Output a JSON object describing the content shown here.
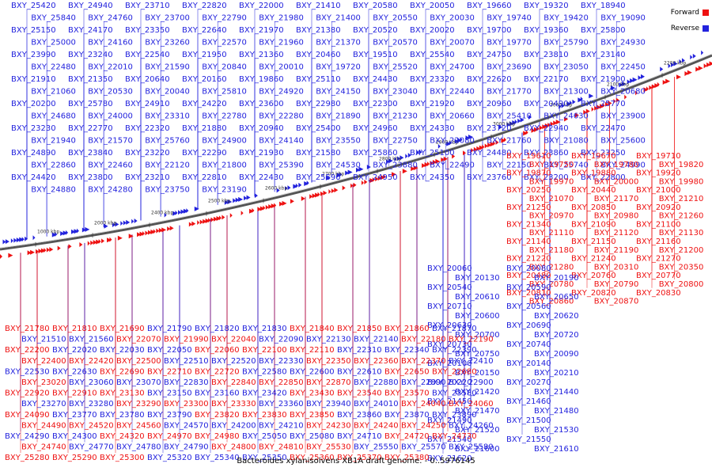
{
  "caption": "Bacteroides xylanisolvens XB1A draft genome. - 0..5976145",
  "legend": [
    {
      "label": "Forward",
      "color": "#ee1111"
    },
    {
      "label": "Reverse",
      "color": "#2222dd"
    }
  ],
  "colors": {
    "forward": "#ee1111",
    "reverse": "#2222dd",
    "backbone": "#444444"
  },
  "ticks": [
    "1000 kbp",
    "2000 kbp",
    "2400 kbp",
    "2500 kbp",
    "2600 kbp",
    "2700 kbp",
    "2800 kbp",
    "2900 kbp",
    "3000 kbp",
    "3000 kbp",
    "2100 kbp",
    "2200 kbp"
  ],
  "labels": {
    "top_blue": [
      "BXY_25420",
      "BXY_24940",
      "BXY_23710",
      "BXY_22820",
      "BXY_22000",
      "BXY_21410",
      "BXY_20580",
      "BXY_20050",
      "BXY_19660",
      "BXY_19320",
      "BXY_18940",
      "BXY_25840",
      "BXY_24760",
      "BXY_23700",
      "BXY_22790",
      "BXY_21980",
      "BXY_21400",
      "BXY_20550",
      "BXY_20030",
      "BXY_19740",
      "BXY_19420",
      "BXY_19090",
      "BXY_25150",
      "BXY_24170",
      "BXY_23350",
      "BXY_22640",
      "BXY_21970",
      "BXY_21380",
      "BXY_20520",
      "BXY_20020",
      "BXY_19700",
      "BXY_19360",
      "BXY_25800",
      "BXY_25000",
      "BXY_24160",
      "BXY_23260",
      "BXY_22570",
      "BXY_21960",
      "BXY_21370",
      "BXY_20570",
      "BXY_20070",
      "BXY_19770",
      "BXY_25790",
      "BXY_24930",
      "BXY_23990",
      "BXY_23240",
      "BXY_22540",
      "BXY_21950",
      "BXY_21360",
      "BXY_20460",
      "BXY_19510",
      "BXY_25540",
      "BXY_24750",
      "BXY_23810",
      "BXY_23140",
      "BXY_22480",
      "BXY_22010",
      "BXY_21590",
      "BXY_20840",
      "BXY_20010",
      "BXY_19720",
      "BXY_25520",
      "BXY_24700",
      "BXY_23690",
      "BXY_23050",
      "BXY_22450",
      "BXY_21910",
      "BXY_21350",
      "BXY_20640",
      "BXY_20160",
      "BXY_19860",
      "BXY_25110",
      "BXY_24430",
      "BXY_23320",
      "BXY_22620",
      "BXY_22170",
      "BXY_21900",
      "BXY_21060",
      "BXY_20530",
      "BXY_20040",
      "BXY_25810",
      "BXY_24920",
      "BXY_24150",
      "BXY_23040",
      "BXY_22440",
      "BXY_21770",
      "BXY_21300",
      "BXY_20680",
      "BXY_20200",
      "BXY_25780",
      "BXY_24910",
      "BXY_24220",
      "BXY_23600",
      "BXY_22980",
      "BXY_22300",
      "BXY_21920",
      "BXY_20960",
      "BXY_20490",
      "BXY_25770",
      "BXY_24680",
      "BXY_24000",
      "BXY_23310",
      "BXY_22780",
      "BXY_22280",
      "BXY_21890",
      "BXY_21230",
      "BXY_20660",
      "BXY_25410",
      "BXY_24630",
      "BXY_23900",
      "BXY_23230",
      "BXY_22770",
      "BXY_22320",
      "BXY_21880",
      "BXY_20940",
      "BXY_25400",
      "BXY_24960",
      "BXY_24330",
      "BXY_23720",
      "BXY_22940",
      "BXY_22470",
      "BXY_21940",
      "BXY_21570",
      "BXY_25760",
      "BXY_24900",
      "BXY_24140",
      "BXY_23550",
      "BXY_22750",
      "BXY_22080",
      "BXY_21760",
      "BXY_21080",
      "BXY_25600",
      "BXY_24890",
      "BXY_23840",
      "BXY_23220",
      "BXY_22290",
      "BXY_21930",
      "BXY_21580",
      "BXY_25860",
      "BXY_25100",
      "BXY_24480",
      "BXY_23860",
      "BXY_23250",
      "BXY_22860",
      "BXY_22460",
      "BXY_22120",
      "BXY_21800",
      "BXY_25390",
      "BXY_24530",
      "BXY_23880",
      "BXY_22490",
      "BXY_22150",
      "BXY_25740",
      "BXY_24990",
      "BXY_24420",
      "BXY_23800",
      "BXY_23210",
      "BXY_22810",
      "BXY_22430",
      "BXY_25590",
      "BXY_24950",
      "BXY_24350",
      "BXY_23760",
      "BXY_23200",
      "BXY_22800",
      "BXY_24880",
      "BXY_24280",
      "BXY_23750",
      "BXY_23190"
    ],
    "right_red": [
      "BXY_19610",
      "BXY_19670",
      "BXY_19710",
      "BXY_19750",
      "BXY_19780",
      "BXY_19820",
      "BXY_19870",
      "BXY_19880",
      "BXY_19920",
      "BXY_19970",
      "BXY_20000",
      "BXY_19980",
      "BXY_20250",
      "BXY_20440",
      "BXY_21000",
      "BXY_21070",
      "BXY_21170",
      "BXY_21210",
      "BXY_21250",
      "BXY_20850",
      "BXY_20920",
      "BXY_20970",
      "BXY_20980",
      "BXY_21260",
      "BXY_21340",
      "BXY_21090",
      "BXY_21100",
      "BXY_21110",
      "BXY_21120",
      "BXY_21130",
      "BXY_21140",
      "BXY_21150",
      "BXY_21160",
      "BXY_21180",
      "BXY_21190",
      "BXY_21200",
      "BXY_21220",
      "BXY_21240",
      "BXY_21270",
      "BXY_21280",
      "BXY_20310",
      "BXY_20350",
      "BXY_20480",
      "BXY_20760",
      "BXY_20770",
      "BXY_20780",
      "BXY_20790",
      "BXY_20800",
      "BXY_20810",
      "BXY_20820",
      "BXY_20830",
      "BXY_20860",
      "BXY_20870"
    ],
    "right_blue": [
      "BXY_20060",
      "BXY_20080",
      "BXY_20130",
      "BXY_20190",
      "BXY_20540",
      "BXY_20590",
      "BXY_20610",
      "BXY_20650",
      "BXY_20710",
      "BXY_20560",
      "BXY_20600",
      "BXY_20620",
      "BXY_20630",
      "BXY_20690",
      "BXY_20700",
      "BXY_20720",
      "BXY_20730",
      "BXY_20740",
      "BXY_20750",
      "BXY_20090",
      "BXY_20100",
      "BXY_20140",
      "BXY_20150",
      "BXY_20210",
      "BXY_20220",
      "BXY_20270",
      "BXY_21420",
      "BXY_21440",
      "BXY_21450",
      "BXY_21460",
      "BXY_21470",
      "BXY_21480",
      "BXY_21490",
      "BXY_21500",
      "BXY_21520",
      "BXY_21530",
      "BXY_21540",
      "BXY_21550",
      "BXY_21600",
      "BXY_21610",
      "BXY_21620"
    ],
    "bottom_mixed": [
      "BXY_21780",
      "BXY_21810",
      "BXY_21690",
      "BXY_21790",
      "BXY_21820",
      "BXY_21830",
      "BXY_21840",
      "BXY_21850",
      "BXY_21860",
      "BXY_21870",
      "BXY_21510",
      "BXY_21560",
      "BXY_22070",
      "BXY_21990",
      "BXY_22040",
      "BXY_22090",
      "BXY_22130",
      "BXY_22140",
      "BXY_22180",
      "BXY_22190",
      "BXY_22200",
      "BXY_22020",
      "BXY_22030",
      "BXY_22050",
      "BXY_22060",
      "BXY_22100",
      "BXY_22110",
      "BXY_22310",
      "BXY_22340",
      "BXY_22390",
      "BXY_22400",
      "BXY_22420",
      "BXY_22500",
      "BXY_22510",
      "BXY_22520",
      "BXY_22330",
      "BXY_22350",
      "BXY_22360",
      "BXY_22370",
      "BXY_22410",
      "BXY_22530",
      "BXY_22630",
      "BXY_22690",
      "BXY_22710",
      "BXY_22720",
      "BXY_22580",
      "BXY_22600",
      "BXY_22610",
      "BXY_22650",
      "BXY_22680",
      "BXY_23020",
      "BXY_23060",
      "BXY_23070",
      "BXY_22830",
      "BXY_22840",
      "BXY_22850",
      "BXY_22870",
      "BXY_22880",
      "BXY_22890",
      "BXY_22900",
      "BXY_22920",
      "BXY_22910",
      "BXY_23130",
      "BXY_23150",
      "BXY_23160",
      "BXY_23420",
      "BXY_23430",
      "BXY_23540",
      "BXY_23570",
      "BXY_23580",
      "BXY_23270",
      "BXY_23280",
      "BXY_23290",
      "BXY_23300",
      "BXY_23330",
      "BXY_23360",
      "BXY_23940",
      "BXY_24010",
      "BXY_24040",
      "BXY_24060",
      "BXY_24090",
      "BXY_23770",
      "BXY_23780",
      "BXY_23790",
      "BXY_23820",
      "BXY_23830",
      "BXY_23850",
      "BXY_23860",
      "BXY_23870",
      "BXY_23890",
      "BXY_24490",
      "BXY_24520",
      "BXY_24560",
      "BXY_24570",
      "BXY_24200",
      "BXY_24210",
      "BXY_24230",
      "BXY_24240",
      "BXY_24250",
      "BXY_24260",
      "BXY_24290",
      "BXY_24300",
      "BXY_24320",
      "BXY_24970",
      "BXY_24980",
      "BXY_25050",
      "BXY_25080",
      "BXY_24710",
      "BXY_24720",
      "BXY_24730",
      "BXY_24740",
      "BXY_24770",
      "BXY_24780",
      "BXY_24790",
      "BXY_24800",
      "BXY_24810",
      "BXY_25530",
      "BXY_25550",
      "BXY_25570",
      "BXY_25580",
      "BXY_25280",
      "BXY_25290",
      "BXY_25300",
      "BXY_25320",
      "BXY_25340",
      "BXY_25350",
      "BXY_25360",
      "BXY_25370",
      "BXY_25380"
    ]
  }
}
